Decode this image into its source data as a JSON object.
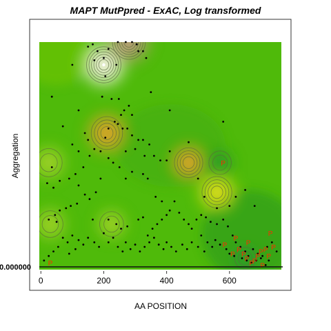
{
  "chart_data": {
    "type": "scatter",
    "title": "MAPT MutPpred - ExAC, Log transformed",
    "xlabel": "AA POSITION",
    "ylabel": "Aggregation",
    "xlim": [
      -5,
      765
    ],
    "x_ticks": [
      0,
      200,
      400,
      600
    ],
    "y_tick_label": "0.000000",
    "density_hotspots": [
      {
        "x": 200,
        "y": 0.9,
        "peak": "white",
        "rank": 1
      },
      {
        "x": 280,
        "y": 1.0,
        "peak": "brown",
        "rank": 2
      },
      {
        "x": 210,
        "y": 0.6,
        "peak": "orange",
        "rank": 3
      },
      {
        "x": 560,
        "y": 0.34,
        "peak": "yellow",
        "rank": 4
      },
      {
        "x": 470,
        "y": 0.47,
        "peak": "orange",
        "rank": 5
      },
      {
        "x": 25,
        "y": 0.47,
        "peak": "light",
        "rank": 6
      },
      {
        "x": 30,
        "y": 0.2,
        "peak": "light",
        "rank": 7
      },
      {
        "x": 225,
        "y": 0.2,
        "peak": "light",
        "rank": 8
      },
      {
        "x": 570,
        "y": 0.47,
        "peak": "dark",
        "rank": 9
      },
      {
        "x": 650,
        "y": 0.05,
        "peak": "dark",
        "rank": 10
      }
    ],
    "points": [
      [
        150,
        0.98
      ],
      [
        165,
        0.99
      ],
      [
        180,
        0.96
      ],
      [
        200,
        0.93
      ],
      [
        205,
        0.85
      ],
      [
        215,
        0.97
      ],
      [
        245,
        1.0
      ],
      [
        270,
        1.0
      ],
      [
        290,
        1.0
      ],
      [
        305,
        0.99
      ],
      [
        310,
        0.96
      ],
      [
        325,
        0.96
      ],
      [
        335,
        0.93
      ],
      [
        170,
        0.92
      ],
      [
        240,
        0.9
      ],
      [
        100,
        0.9
      ],
      [
        35,
        0.76
      ],
      [
        195,
        0.76
      ],
      [
        225,
        0.75
      ],
      [
        248,
        0.75
      ],
      [
        280,
        0.72
      ],
      [
        265,
        0.7
      ],
      [
        255,
        0.68
      ],
      [
        235,
        0.65
      ],
      [
        245,
        0.64
      ],
      [
        260,
        0.62
      ],
      [
        275,
        0.62
      ],
      [
        205,
        0.58
      ],
      [
        215,
        0.62
      ],
      [
        290,
        0.59
      ],
      [
        310,
        0.57
      ],
      [
        325,
        0.57
      ],
      [
        345,
        0.55
      ],
      [
        330,
        0.5
      ],
      [
        270,
        0.52
      ],
      [
        300,
        0.53
      ],
      [
        360,
        0.5
      ],
      [
        380,
        0.48
      ],
      [
        400,
        0.48
      ],
      [
        410,
        0.52
      ],
      [
        325,
        0.42
      ],
      [
        340,
        0.4
      ],
      [
        290,
        0.43
      ],
      [
        270,
        0.4
      ],
      [
        250,
        0.45
      ],
      [
        230,
        0.47
      ],
      [
        215,
        0.49
      ],
      [
        190,
        0.52
      ],
      [
        170,
        0.53
      ],
      [
        155,
        0.5
      ],
      [
        135,
        0.45
      ],
      [
        110,
        0.42
      ],
      [
        90,
        0.4
      ],
      [
        60,
        0.39
      ],
      [
        40,
        0.36
      ],
      [
        20,
        0.38
      ],
      [
        35,
        0.45
      ],
      [
        100,
        0.55
      ],
      [
        120,
        0.52
      ],
      [
        140,
        0.6
      ],
      [
        150,
        0.57
      ],
      [
        190,
        0.4
      ],
      [
        175,
        0.34
      ],
      [
        155,
        0.31
      ],
      [
        140,
        0.33
      ],
      [
        120,
        0.37
      ],
      [
        115,
        0.29
      ],
      [
        95,
        0.28
      ],
      [
        80,
        0.27
      ],
      [
        60,
        0.26
      ],
      [
        45,
        0.24
      ],
      [
        25,
        0.22
      ],
      [
        50,
        0.21
      ],
      [
        165,
        0.22
      ],
      [
        215,
        0.22
      ],
      [
        240,
        0.2
      ],
      [
        255,
        0.18
      ],
      [
        275,
        0.19
      ],
      [
        310,
        0.22
      ],
      [
        325,
        0.23
      ],
      [
        340,
        0.15
      ],
      [
        355,
        0.18
      ],
      [
        370,
        0.2
      ],
      [
        385,
        0.22
      ],
      [
        400,
        0.24
      ],
      [
        410,
        0.26
      ],
      [
        385,
        0.3
      ],
      [
        365,
        0.32
      ],
      [
        425,
        0.3
      ],
      [
        440,
        0.25
      ],
      [
        455,
        0.22
      ],
      [
        470,
        0.2
      ],
      [
        480,
        0.18
      ],
      [
        495,
        0.22
      ],
      [
        510,
        0.24
      ],
      [
        525,
        0.23
      ],
      [
        540,
        0.21
      ],
      [
        560,
        0.2
      ],
      [
        580,
        0.22
      ],
      [
        595,
        0.19
      ],
      [
        610,
        0.15
      ],
      [
        620,
        0.12
      ],
      [
        635,
        0.1
      ],
      [
        650,
        0.08
      ],
      [
        660,
        0.06
      ],
      [
        675,
        0.09
      ],
      [
        690,
        0.07
      ],
      [
        705,
        0.06
      ],
      [
        720,
        0.1
      ],
      [
        735,
        0.12
      ],
      [
        750,
        0.08
      ],
      [
        640,
        0.05
      ],
      [
        655,
        0.04
      ],
      [
        670,
        0.03
      ],
      [
        685,
        0.04
      ],
      [
        700,
        0.05
      ],
      [
        715,
        0.02
      ],
      [
        725,
        0.04
      ],
      [
        600,
        0.07
      ],
      [
        615,
        0.06
      ],
      [
        590,
        0.09
      ],
      [
        570,
        0.11
      ],
      [
        555,
        0.13
      ],
      [
        545,
        0.1
      ],
      [
        530,
        0.12
      ],
      [
        520,
        0.08
      ],
      [
        510,
        0.15
      ],
      [
        500,
        0.1
      ],
      [
        480,
        0.12
      ],
      [
        465,
        0.09
      ],
      [
        450,
        0.11
      ],
      [
        430,
        0.08
      ],
      [
        415,
        0.1
      ],
      [
        400,
        0.12
      ],
      [
        390,
        0.09
      ],
      [
        375,
        0.11
      ],
      [
        360,
        0.14
      ],
      [
        345,
        0.12
      ],
      [
        330,
        0.1
      ],
      [
        315,
        0.08
      ],
      [
        300,
        0.11
      ],
      [
        285,
        0.09
      ],
      [
        270,
        0.12
      ],
      [
        260,
        0.08
      ],
      [
        245,
        0.1
      ],
      [
        230,
        0.14
      ],
      [
        215,
        0.12
      ],
      [
        200,
        0.16
      ],
      [
        185,
        0.1
      ],
      [
        170,
        0.12
      ],
      [
        150,
        0.14
      ],
      [
        135,
        0.11
      ],
      [
        120,
        0.13
      ],
      [
        100,
        0.15
      ],
      [
        85,
        0.12
      ],
      [
        70,
        0.14
      ],
      [
        55,
        0.1
      ],
      [
        40,
        0.08
      ],
      [
        25,
        0.06
      ],
      [
        10,
        0.04
      ],
      [
        90,
        0.07
      ],
      [
        110,
        0.09
      ],
      [
        580,
        0.65
      ],
      [
        470,
        0.56
      ],
      [
        410,
        0.7
      ],
      [
        350,
        0.78
      ],
      [
        290,
        0.68
      ],
      [
        120,
        0.7
      ],
      [
        70,
        0.63
      ],
      [
        620,
        0.32
      ],
      [
        650,
        0.35
      ],
      [
        680,
        0.28
      ],
      [
        600,
        0.28
      ],
      [
        560,
        0.27
      ],
      [
        520,
        0.32
      ],
      [
        500,
        0.4
      ]
    ],
    "pathogenic_marker": "P",
    "pathogenic_points": [
      [
        580,
        0.47
      ],
      [
        30,
        0.03
      ],
      [
        585,
        0.11
      ],
      [
        630,
        0.09
      ],
      [
        645,
        0.07
      ],
      [
        655,
        0.05
      ],
      [
        670,
        0.03
      ],
      [
        690,
        0.06
      ],
      [
        700,
        0.08
      ],
      [
        715,
        0.09
      ],
      [
        725,
        0.06
      ],
      [
        740,
        0.1
      ],
      [
        660,
        0.12
      ],
      [
        620,
        0.14
      ],
      [
        610,
        0.07
      ],
      [
        680,
        0.04
      ],
      [
        730,
        0.16
      ],
      [
        705,
        0.02
      ]
    ],
    "grid": false,
    "legend": "none"
  }
}
